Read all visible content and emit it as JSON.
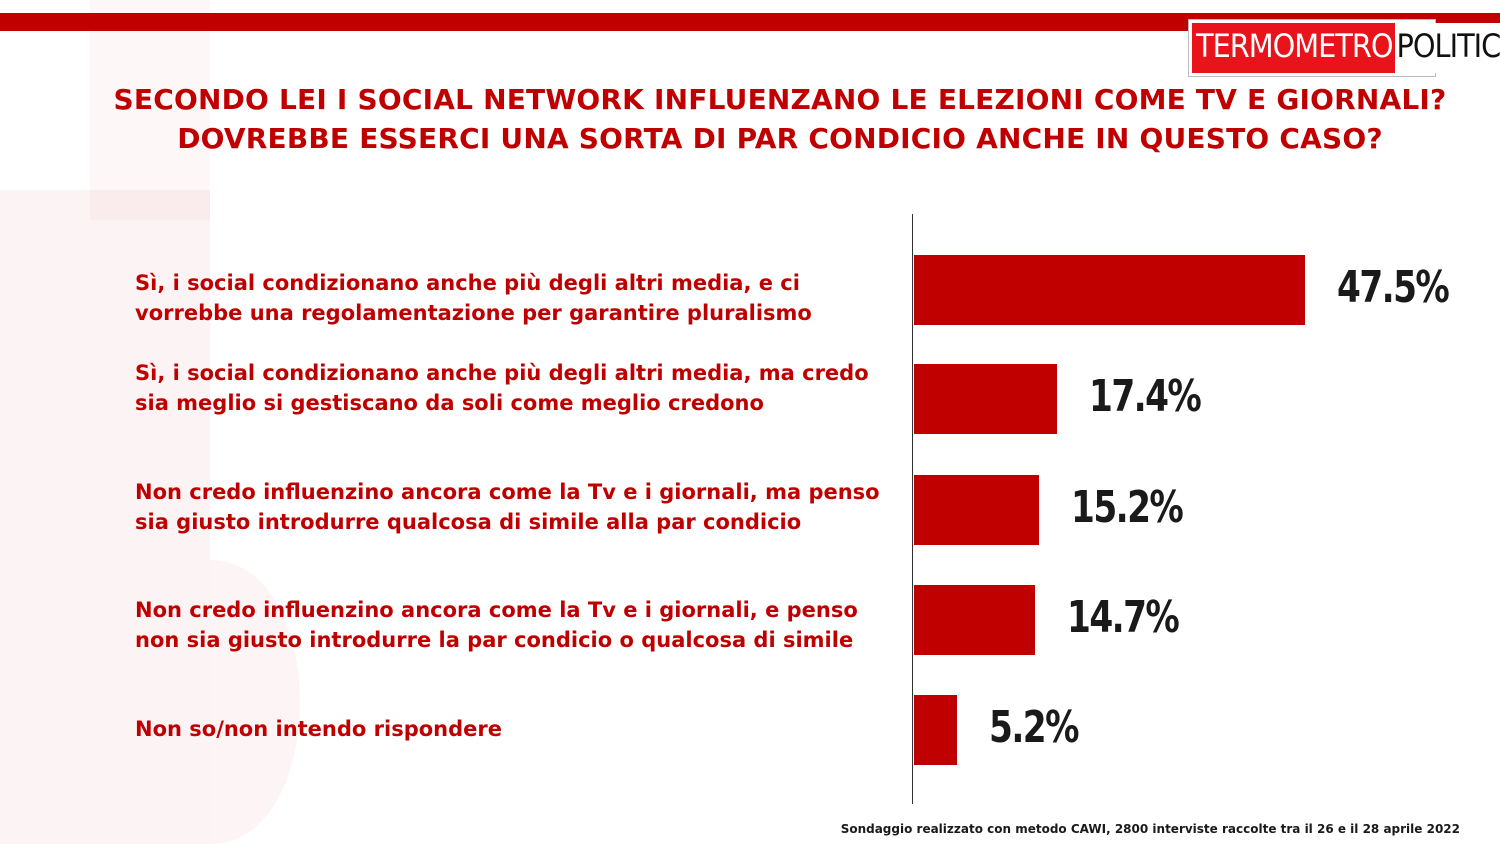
{
  "logo": {
    "part1": "TERMOMETRO",
    "part2": "POLITICO"
  },
  "title": "SECONDO LEI I SOCIAL NETWORK INFLUENZANO LE ELEZIONI COME TV E GIORNALI? DOVREBBE ESSERCI UNA SORTA DI PAR CONDICIO ANCHE IN QUESTO CASO?",
  "footer": "Sondaggio realizzato con metodo CAWI, 2800 interviste raccolte tra il 26 e il 28 aprile 2022",
  "colors": {
    "accent": "#c00000",
    "logo_red": "#e8131b",
    "value_text": "#1a1a1a"
  },
  "chart_data": {
    "type": "bar",
    "orientation": "horizontal",
    "title": "SECONDO LEI I SOCIAL NETWORK INFLUENZANO LE ELEZIONI COME TV E GIORNALI? DOVREBBE ESSERCI UNA SORTA DI PAR CONDICIO ANCHE IN QUESTO CASO?",
    "categories": [
      "Sì, i social condizionano anche più degli altri media, e ci vorrebbe una regolamentazione per garantire pluralismo",
      "Sì, i social condizionano anche più degli altri media, ma credo sia meglio si gestiscano da soli come meglio credono",
      "Non credo influenzino ancora come la Tv e i giornali, ma penso sia giusto introdurre qualcosa di simile alla par condicio",
      "Non credo influenzino ancora come la Tv e i giornali, e penso non sia giusto introdurre la par condicio o qualcosa di simile",
      "Non so/non intendo rispondere"
    ],
    "values": [
      47.5,
      17.4,
      15.2,
      14.7,
      5.2
    ],
    "value_labels": [
      "47.5%",
      "17.4%",
      "15.2%",
      "14.7%",
      "5.2%"
    ],
    "xlim": [
      0,
      60
    ],
    "grid": false,
    "legend": "none"
  }
}
